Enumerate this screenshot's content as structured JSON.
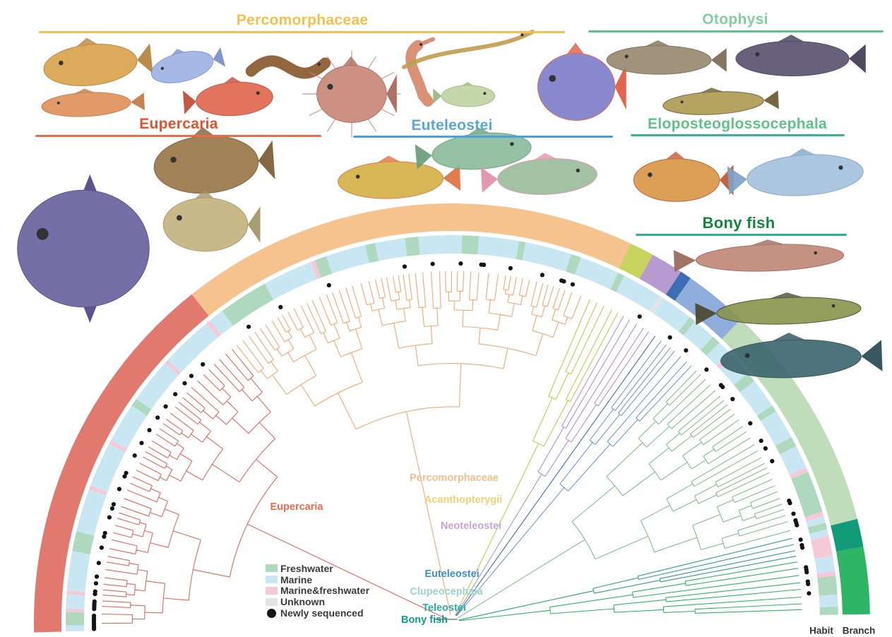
{
  "group_headers": [
    {
      "id": "percomorphaceae",
      "label": "Percomorphaceae",
      "color": "#F0C14E",
      "underline_color": "#F2C14E"
    },
    {
      "id": "otophysi",
      "label": "Otophysi",
      "color": "#85CC9E",
      "underline_color": "#5BC488"
    },
    {
      "id": "eupercaria",
      "label": "Eupercaria",
      "color": "#E8502D",
      "underline_color": "#EC6A4A"
    },
    {
      "id": "euteleostei",
      "label": "Euteleostei",
      "color": "#56A7DB",
      "underline_color": "#4E9FD4"
    },
    {
      "id": "eloposteoglossocephala",
      "label": "Eloposteoglossocephala",
      "color": "#5FC287",
      "underline_color": "#35B392"
    },
    {
      "id": "bony_fish",
      "label": "Bony fish",
      "color": "#15843F",
      "underline_color": "#2FB190"
    }
  ],
  "clade_labels": [
    {
      "id": "eupercaria",
      "label": "Eupercaria",
      "color": "#ED6A4D"
    },
    {
      "id": "percomorphaceae",
      "label": "Percomorphaceae",
      "color": "#F5BE8C"
    },
    {
      "id": "acanthopterygii",
      "label": "Acanthopterygii",
      "color": "#F3D276"
    },
    {
      "id": "neoteleostei",
      "label": "Neoteleostei",
      "color": "#C7A5DA"
    },
    {
      "id": "euteleostei",
      "label": "Euteleostei",
      "color": "#3E8FD0"
    },
    {
      "id": "clupeocephala",
      "label": "Clupeocephala",
      "color": "#9ED2C8"
    },
    {
      "id": "teleostei",
      "label": "Teleostei",
      "color": "#2FAE9E"
    },
    {
      "id": "bony_fish",
      "label": "Bony fish",
      "color": "#0E9D8C"
    }
  ],
  "legend": {
    "items": [
      {
        "id": "freshwater",
        "label": "Freshwater",
        "color": "#AFD9BE",
        "shape": "square"
      },
      {
        "id": "marine",
        "label": "Marine",
        "color": "#C9E6F3",
        "shape": "square"
      },
      {
        "id": "marine_freshwater",
        "label": "Marine&freshwater",
        "color": "#F6C9D9",
        "shape": "square"
      },
      {
        "id": "unknown",
        "label": "Unknown",
        "color": "#E3E3E3",
        "shape": "square"
      },
      {
        "id": "newly_sequenced",
        "label": "Newly sequenced",
        "color": "#141414",
        "shape": "dot"
      }
    ]
  },
  "ring_labels": {
    "habit": "Habit",
    "branch": "Branch"
  },
  "habitat_colors": {
    "M": "#C9E6F3",
    "F": "#AFD9BE",
    "P": "#F6C9D9",
    "U": "#E3E3E3"
  },
  "branch_ring": {
    "segments": [
      {
        "clade": "eupercaria",
        "color": "#E2796E",
        "a0": 181.5,
        "a1": 128.5
      },
      {
        "clade": "percomorphaceae",
        "color": "#F6C28E",
        "a0": 128.5,
        "a1": 64.7
      },
      {
        "clade": "acanthopterygii",
        "color": "#C6D45E",
        "a0": 64.7,
        "a1": 61.3
      },
      {
        "clade": "neoteleostei",
        "color": "#B79BD0",
        "a0": 61.3,
        "a1": 56.8
      },
      {
        "clade": "deep-blue-lineage",
        "color": "#3E6CB5",
        "a0": 56.8,
        "a1": 55.2
      },
      {
        "clade": "euteleostei",
        "color": "#8FAEDC",
        "a0": 55.2,
        "a1": 46.3
      },
      {
        "clade": "eloposteoglossocephala-otophysi",
        "color": "#BFDDB8",
        "a0": 46.3,
        "a1": 14.2
      },
      {
        "clade": "dark-teal-lineage",
        "color": "#129B79",
        "a0": 14.2,
        "a1": 10.3
      },
      {
        "clade": "basal-bony-fish",
        "color": "#2EB566",
        "a0": 10.3,
        "a1": 1.0
      }
    ]
  },
  "habit_ring": {
    "segments": [
      [
        181.5,
        180.6,
        "M"
      ],
      [
        180.6,
        178.6,
        "F"
      ],
      [
        178.6,
        178.1,
        "P"
      ],
      [
        178.1,
        176,
        "M"
      ],
      [
        176,
        175.4,
        "P"
      ],
      [
        175.4,
        169.5,
        "M"
      ],
      [
        169.5,
        166.5,
        "F"
      ],
      [
        166.5,
        160,
        "M"
      ],
      [
        160,
        159.4,
        "P"
      ],
      [
        159.4,
        152.6,
        "M"
      ],
      [
        152.6,
        152,
        "P"
      ],
      [
        152,
        146,
        "M"
      ],
      [
        146,
        144.8,
        "F"
      ],
      [
        144.8,
        138,
        "M"
      ],
      [
        138,
        137.4,
        "P"
      ],
      [
        137.4,
        129.5,
        "M"
      ],
      [
        129.5,
        128.8,
        "P"
      ],
      [
        128.8,
        126.5,
        "M"
      ],
      [
        126.5,
        119,
        "F"
      ],
      [
        119,
        111.5,
        "M"
      ],
      [
        111.5,
        110.8,
        "P"
      ],
      [
        110.8,
        109,
        "F"
      ],
      [
        109,
        103,
        "M"
      ],
      [
        103,
        101.5,
        "F"
      ],
      [
        101.5,
        97,
        "M"
      ],
      [
        97,
        95,
        "F"
      ],
      [
        95,
        88.5,
        "M"
      ],
      [
        88.5,
        86,
        "F"
      ],
      [
        86,
        80,
        "M"
      ],
      [
        80,
        79,
        "F"
      ],
      [
        79,
        72,
        "M"
      ],
      [
        72,
        70.5,
        "F"
      ],
      [
        70.5,
        64.5,
        "M"
      ],
      [
        64.5,
        63.5,
        "F"
      ],
      [
        63.5,
        57.5,
        "M"
      ],
      [
        57.5,
        56.8,
        "U"
      ],
      [
        56.8,
        52,
        "M"
      ],
      [
        52,
        51,
        "F"
      ],
      [
        51,
        47.5,
        "M"
      ],
      [
        47.5,
        46.2,
        "F"
      ],
      [
        46.2,
        44,
        "M"
      ],
      [
        44,
        43.3,
        "P"
      ],
      [
        43.3,
        40,
        "M"
      ],
      [
        40,
        38.5,
        "F"
      ],
      [
        38.5,
        34,
        "M"
      ],
      [
        34,
        33,
        "F"
      ],
      [
        33,
        28.5,
        "M"
      ],
      [
        28.5,
        27,
        "F"
      ],
      [
        27,
        23.5,
        "M"
      ],
      [
        23.5,
        22.8,
        "P"
      ],
      [
        22.8,
        16.5,
        "F"
      ],
      [
        16.5,
        15.8,
        "P"
      ],
      [
        15.8,
        14.8,
        "M"
      ],
      [
        14.8,
        13.8,
        "F"
      ],
      [
        13.8,
        12.8,
        "M"
      ],
      [
        12.8,
        9.8,
        "P"
      ],
      [
        9.8,
        7.5,
        "M"
      ],
      [
        7.5,
        6.8,
        "P"
      ],
      [
        6.8,
        4,
        "F"
      ],
      [
        4,
        2.2,
        "M"
      ],
      [
        2.2,
        1.0,
        "F"
      ]
    ]
  },
  "newly_sequenced_dots": {
    "angles": [
      181.2,
      180.9,
      180.6,
      180.3,
      180.0,
      179.7,
      179.4,
      179.1,
      178.0,
      177.7,
      177.4,
      177.1,
      176.8,
      175.6,
      175.2,
      173.9,
      172.8,
      170.6,
      168.1,
      166.3,
      165.7,
      163.1,
      161.6,
      160.9,
      158.3,
      156.1,
      155.5,
      152.4,
      150.1,
      147.7,
      145.3,
      143.1,
      140.6,
      138.3,
      136.7,
      134.1,
      124.6,
      118.6,
      110.1,
      97.6,
      93.1,
      88.6,
      85.3,
      84.9,
      80.6,
      75.4,
      72.2,
      71.8,
      70.3,
      58.4,
      52.5,
      49.2,
      44.7,
      41.3,
      40.9,
      38.4,
      33.6,
      30.3,
      28.9,
      26.6,
      19.7,
      19.3,
      17.5,
      16.4,
      16.0,
      15.6,
      13.2,
      12.3,
      11.9,
      8.7,
      8.3,
      7.9,
      6.4,
      6.0,
      4.5
    ]
  },
  "tree": {
    "tip_radius": 496,
    "dot_radius": 507,
    "clades": [
      {
        "id": "eupercaria",
        "color": "#DC6A5E",
        "a0": 181.0,
        "a1": 128.5,
        "r0": 248
      },
      {
        "id": "percomorphaceae",
        "color": "#F2A873",
        "a0": 128.5,
        "a1": 67.6,
        "r0": 232
      },
      {
        "id": "acanthopterygii",
        "color": "#BFCB52",
        "a0": 67.6,
        "a1": 61.3,
        "r0": 200
      },
      {
        "id": "neoteleostei",
        "color": "#B291CC",
        "a0": 61.3,
        "a1": 55.3,
        "r0": 168
      },
      {
        "id": "deep-blue-lineage",
        "color": "#3E6CB5",
        "a0": 55.3,
        "a1": 53.8,
        "r0": 150
      },
      {
        "id": "euteleostei",
        "color": "#6E9AD2",
        "a0": 53.8,
        "a1": 46.3,
        "r0": 140
      },
      {
        "id": "eloposteoglossocephala-otophysi",
        "color": "#7FBF8C",
        "a0": 46.3,
        "a1": 14.2,
        "r0": 92
      },
      {
        "id": "otocephala-teal",
        "color": "#2E9E85",
        "a0": 14.2,
        "a1": 10.3,
        "r0": 60
      },
      {
        "id": "basal-bony-fish",
        "color": "#2EB566",
        "a0": 10.3,
        "a1": 1.3,
        "r0": 36
      }
    ]
  },
  "fish_illustrations": [
    {
      "id": "flounder",
      "label": "spotted flounder",
      "type": "flat",
      "dir": -1,
      "color": "#D8A44E",
      "color2": "#B5823A"
    },
    {
      "id": "threadfin-fish",
      "label": "pale blue fish with streamer fins",
      "type": "oval",
      "dir": -1,
      "color": "#9FB4E4",
      "color2": "#7890C8"
    },
    {
      "id": "swamp-eel",
      "label": "brown swamp eel",
      "type": "eel",
      "dir": 1,
      "color": "#8A5A2E"
    },
    {
      "id": "tonguefish",
      "label": "orange tonguefish",
      "type": "flat",
      "dir": -1,
      "color": "#E0935C",
      "color2": "#C27844"
    },
    {
      "id": "bigeye",
      "label": "red bigeye fish",
      "type": "oval",
      "dir": 1,
      "color": "#E06850",
      "color2": "#C04A38"
    },
    {
      "id": "lionfish",
      "label": "lionfish",
      "type": "round",
      "dir": -1,
      "spiky": true,
      "color": "#C88878",
      "color2": "#A86458"
    },
    {
      "id": "seahorse",
      "label": "seahorse",
      "type": "seahorse",
      "dir": -1,
      "color": "#D8886A"
    },
    {
      "id": "pipefish",
      "label": "banded pipefish",
      "type": "eel",
      "dir": 1,
      "color": "#C0A050"
    },
    {
      "id": "small-pale-fish",
      "label": "small pale green fish",
      "type": "oval",
      "dir": 1,
      "color": "#C2D4A2",
      "color2": "#9CB87E"
    },
    {
      "id": "opah",
      "label": "opah with red fins",
      "type": "round",
      "dir": -1,
      "color": "#8080CC",
      "color2": "#E05840"
    },
    {
      "id": "walking-catfish",
      "label": "brown catfish",
      "type": "long",
      "dir": -1,
      "color": "#9A8A70",
      "color2": "#7A6A52"
    },
    {
      "id": "black-catfish",
      "label": "dark catfish",
      "type": "long",
      "dir": -1,
      "color": "#5C5470",
      "color2": "#413A52"
    },
    {
      "id": "tiger-loach",
      "label": "banded loach",
      "type": "long",
      "dir": -1,
      "color": "#AF9C55",
      "color2": "#6A5A30"
    },
    {
      "id": "monkfish",
      "label": "anglerfish",
      "type": "round",
      "dir": -1,
      "color": "#9A7848",
      "color2": "#7A5C34"
    },
    {
      "id": "pufferfish",
      "label": "pufferfish",
      "type": "round",
      "dir": -1,
      "color": "#C4B480",
      "color2": "#A39465"
    },
    {
      "id": "ocean-sunfish",
      "label": "ocean sunfish",
      "type": "sunfish",
      "dir": -1,
      "color": "#6A62A0",
      "color2": "#4E4880"
    },
    {
      "id": "golden-trout",
      "label": "golden char",
      "type": "oval",
      "dir": -1,
      "color": "#D4B048",
      "color2": "#E07040"
    },
    {
      "id": "green-trout",
      "label": "green trout",
      "type": "oval",
      "dir": 1,
      "color": "#8CBC9C",
      "color2": "#6A9C7C"
    },
    {
      "id": "rainbow-trout",
      "label": "rainbow trout",
      "type": "oval",
      "dir": 1,
      "color": "#9CBC9C",
      "color2": "#E090A8"
    },
    {
      "id": "paradise-fish",
      "label": "colorful labyrinth fish",
      "type": "oval",
      "dir": -1,
      "color": "#D89848",
      "color2": "#C05830"
    },
    {
      "id": "herring",
      "label": "silvery herring",
      "type": "oval",
      "dir": 1,
      "color": "#A4C2DC",
      "color2": "#7FA2C4"
    },
    {
      "id": "gar",
      "label": "gar",
      "type": "long",
      "dir": 1,
      "color": "#C08878",
      "color2": "#9A6A5A"
    },
    {
      "id": "bichir",
      "label": "bichir",
      "type": "long",
      "dir": 1,
      "color": "#8A9650",
      "color2": "#4A4A30"
    },
    {
      "id": "coelacanth",
      "label": "coelacanth",
      "type": "long",
      "dir": -1,
      "color": "#3E6870",
      "color2": "#2A4A52"
    }
  ]
}
